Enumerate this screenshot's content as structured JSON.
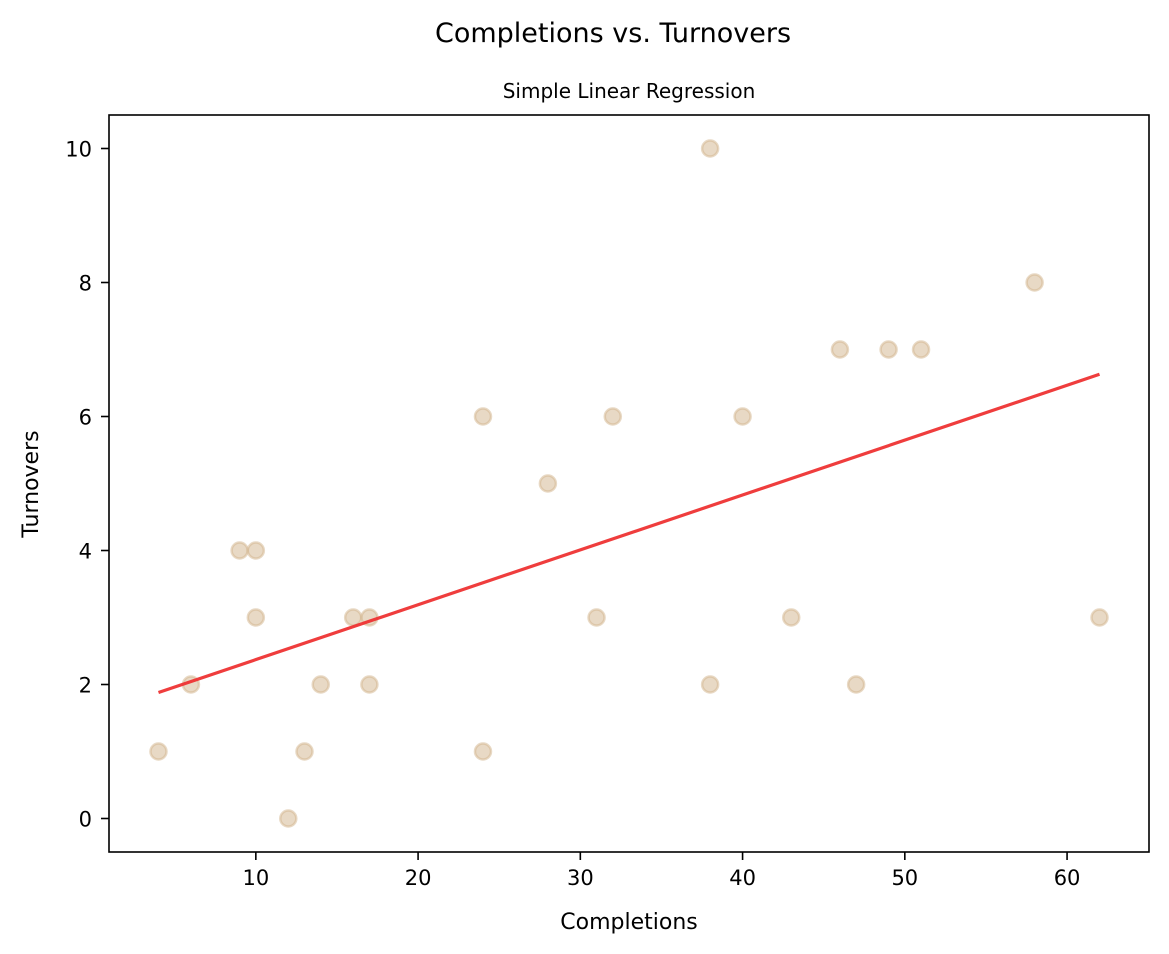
{
  "chart_data": {
    "type": "scatter",
    "title": "Completions vs. Turnovers",
    "subtitle": "Simple Linear Regression",
    "xlabel": "Completions",
    "ylabel": "Turnovers",
    "xlim": [
      0.95,
      65.05
    ],
    "ylim": [
      -0.5,
      10.5
    ],
    "xticks": [
      10,
      20,
      30,
      40,
      50,
      60
    ],
    "yticks": [
      0,
      2,
      4,
      6,
      8,
      10
    ],
    "grid": false,
    "points": [
      {
        "x": 4,
        "y": 1
      },
      {
        "x": 6,
        "y": 2
      },
      {
        "x": 9,
        "y": 4
      },
      {
        "x": 10,
        "y": 4
      },
      {
        "x": 10,
        "y": 3
      },
      {
        "x": 12,
        "y": 0
      },
      {
        "x": 13,
        "y": 1
      },
      {
        "x": 14,
        "y": 2
      },
      {
        "x": 16,
        "y": 3
      },
      {
        "x": 17,
        "y": 3
      },
      {
        "x": 17,
        "y": 2
      },
      {
        "x": 24,
        "y": 6
      },
      {
        "x": 24,
        "y": 1
      },
      {
        "x": 28,
        "y": 5
      },
      {
        "x": 31,
        "y": 3
      },
      {
        "x": 32,
        "y": 6
      },
      {
        "x": 38,
        "y": 10
      },
      {
        "x": 38,
        "y": 2
      },
      {
        "x": 40,
        "y": 6
      },
      {
        "x": 43,
        "y": 3
      },
      {
        "x": 46,
        "y": 7
      },
      {
        "x": 47,
        "y": 2
      },
      {
        "x": 49,
        "y": 7
      },
      {
        "x": 51,
        "y": 7
      },
      {
        "x": 58,
        "y": 8
      },
      {
        "x": 62,
        "y": 3
      }
    ],
    "regression_line": {
      "x": [
        4,
        62
      ],
      "y": [
        1.88,
        6.63
      ]
    },
    "colors": {
      "points": "#d2b48c",
      "regression_line": "#ee3333",
      "axes": "#000000"
    }
  }
}
